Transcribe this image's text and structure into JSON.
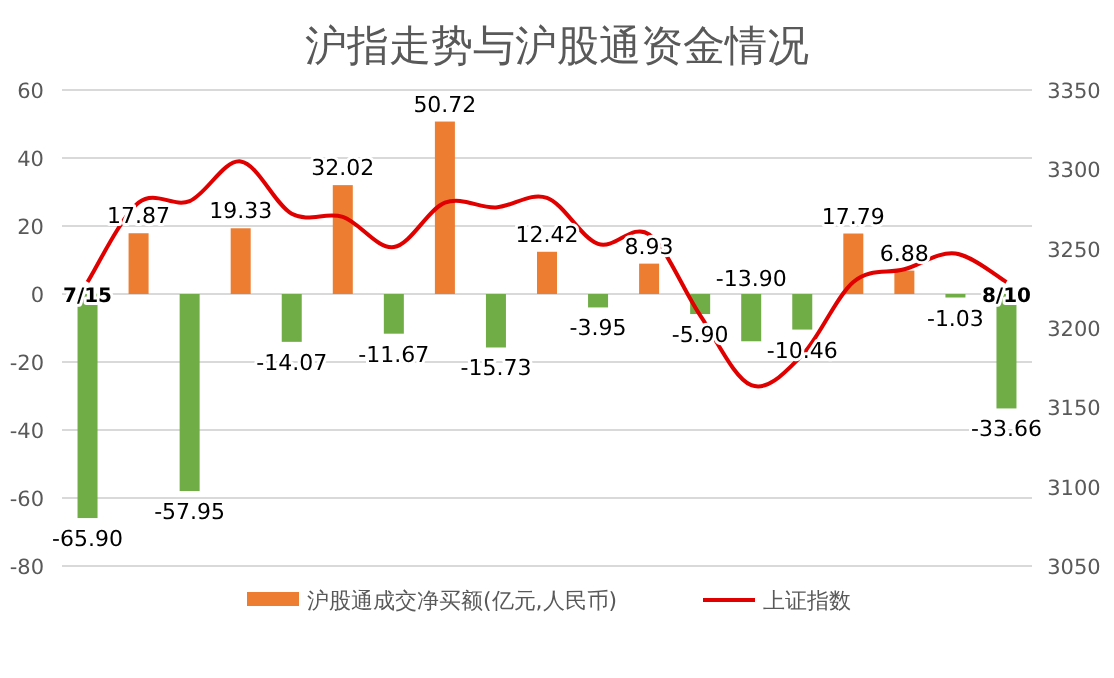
{
  "chart_data": {
    "type": "bar",
    "title": "沪指走势与沪股通资金情况",
    "categories": [
      "7/15",
      null,
      null,
      null,
      null,
      null,
      null,
      null,
      null,
      null,
      null,
      null,
      null,
      null,
      null,
      null,
      null,
      null,
      "8/10"
    ],
    "series": [
      {
        "name": "沪股通成交净买额(亿元,人民币)",
        "color": "#ed7d31",
        "colors": [
          "#70ad47",
          "#ed7d31",
          "#70ad47",
          "#ed7d31",
          "#70ad47",
          "#ed7d31",
          "#70ad47",
          "#ed7d31",
          "#70ad47",
          "#ed7d31",
          "#70ad47",
          "#ed7d31",
          "#70ad47",
          "#70ad47",
          "#70ad47",
          "#ed7d31",
          "#ed7d31",
          "#70ad47",
          "#70ad47"
        ],
        "values": [
          -65.9,
          17.87,
          -57.95,
          19.33,
          -14.07,
          32.02,
          -11.67,
          50.72,
          -15.73,
          12.42,
          -3.95,
          8.93,
          -5.9,
          -13.9,
          -10.46,
          17.79,
          6.88,
          -1.03,
          -33.66
        ],
        "value_labels": [
          "-65.90",
          "17.87",
          "-57.95",
          "19.33",
          "-14.07",
          "32.02",
          "-11.67",
          "50.72",
          "-15.73",
          "12.42",
          "-3.95",
          "8.93",
          "-5.90",
          "-13.90",
          "-10.46",
          "17.79",
          "6.88",
          "-1.03",
          "-33.66"
        ]
      },
      {
        "name": "上证指数",
        "type": "line",
        "axis": "y2",
        "color": "#e00000",
        "values": [
          3229,
          3279,
          3280,
          3305,
          3272,
          3270,
          3251,
          3279,
          3276,
          3282,
          3253,
          3259,
          3208,
          3164,
          3183,
          3229,
          3237,
          3247,
          3229
        ]
      }
    ],
    "ylim": [
      -80,
      60
    ],
    "yticks": [
      -80,
      -60,
      -40,
      -20,
      0,
      20,
      40,
      60
    ],
    "y2lim": [
      3050,
      3350
    ],
    "y2ticks": [
      3050,
      3100,
      3150,
      3200,
      3250,
      3300,
      3350
    ],
    "grid": "y",
    "legend": "bottom",
    "marker": "none"
  }
}
